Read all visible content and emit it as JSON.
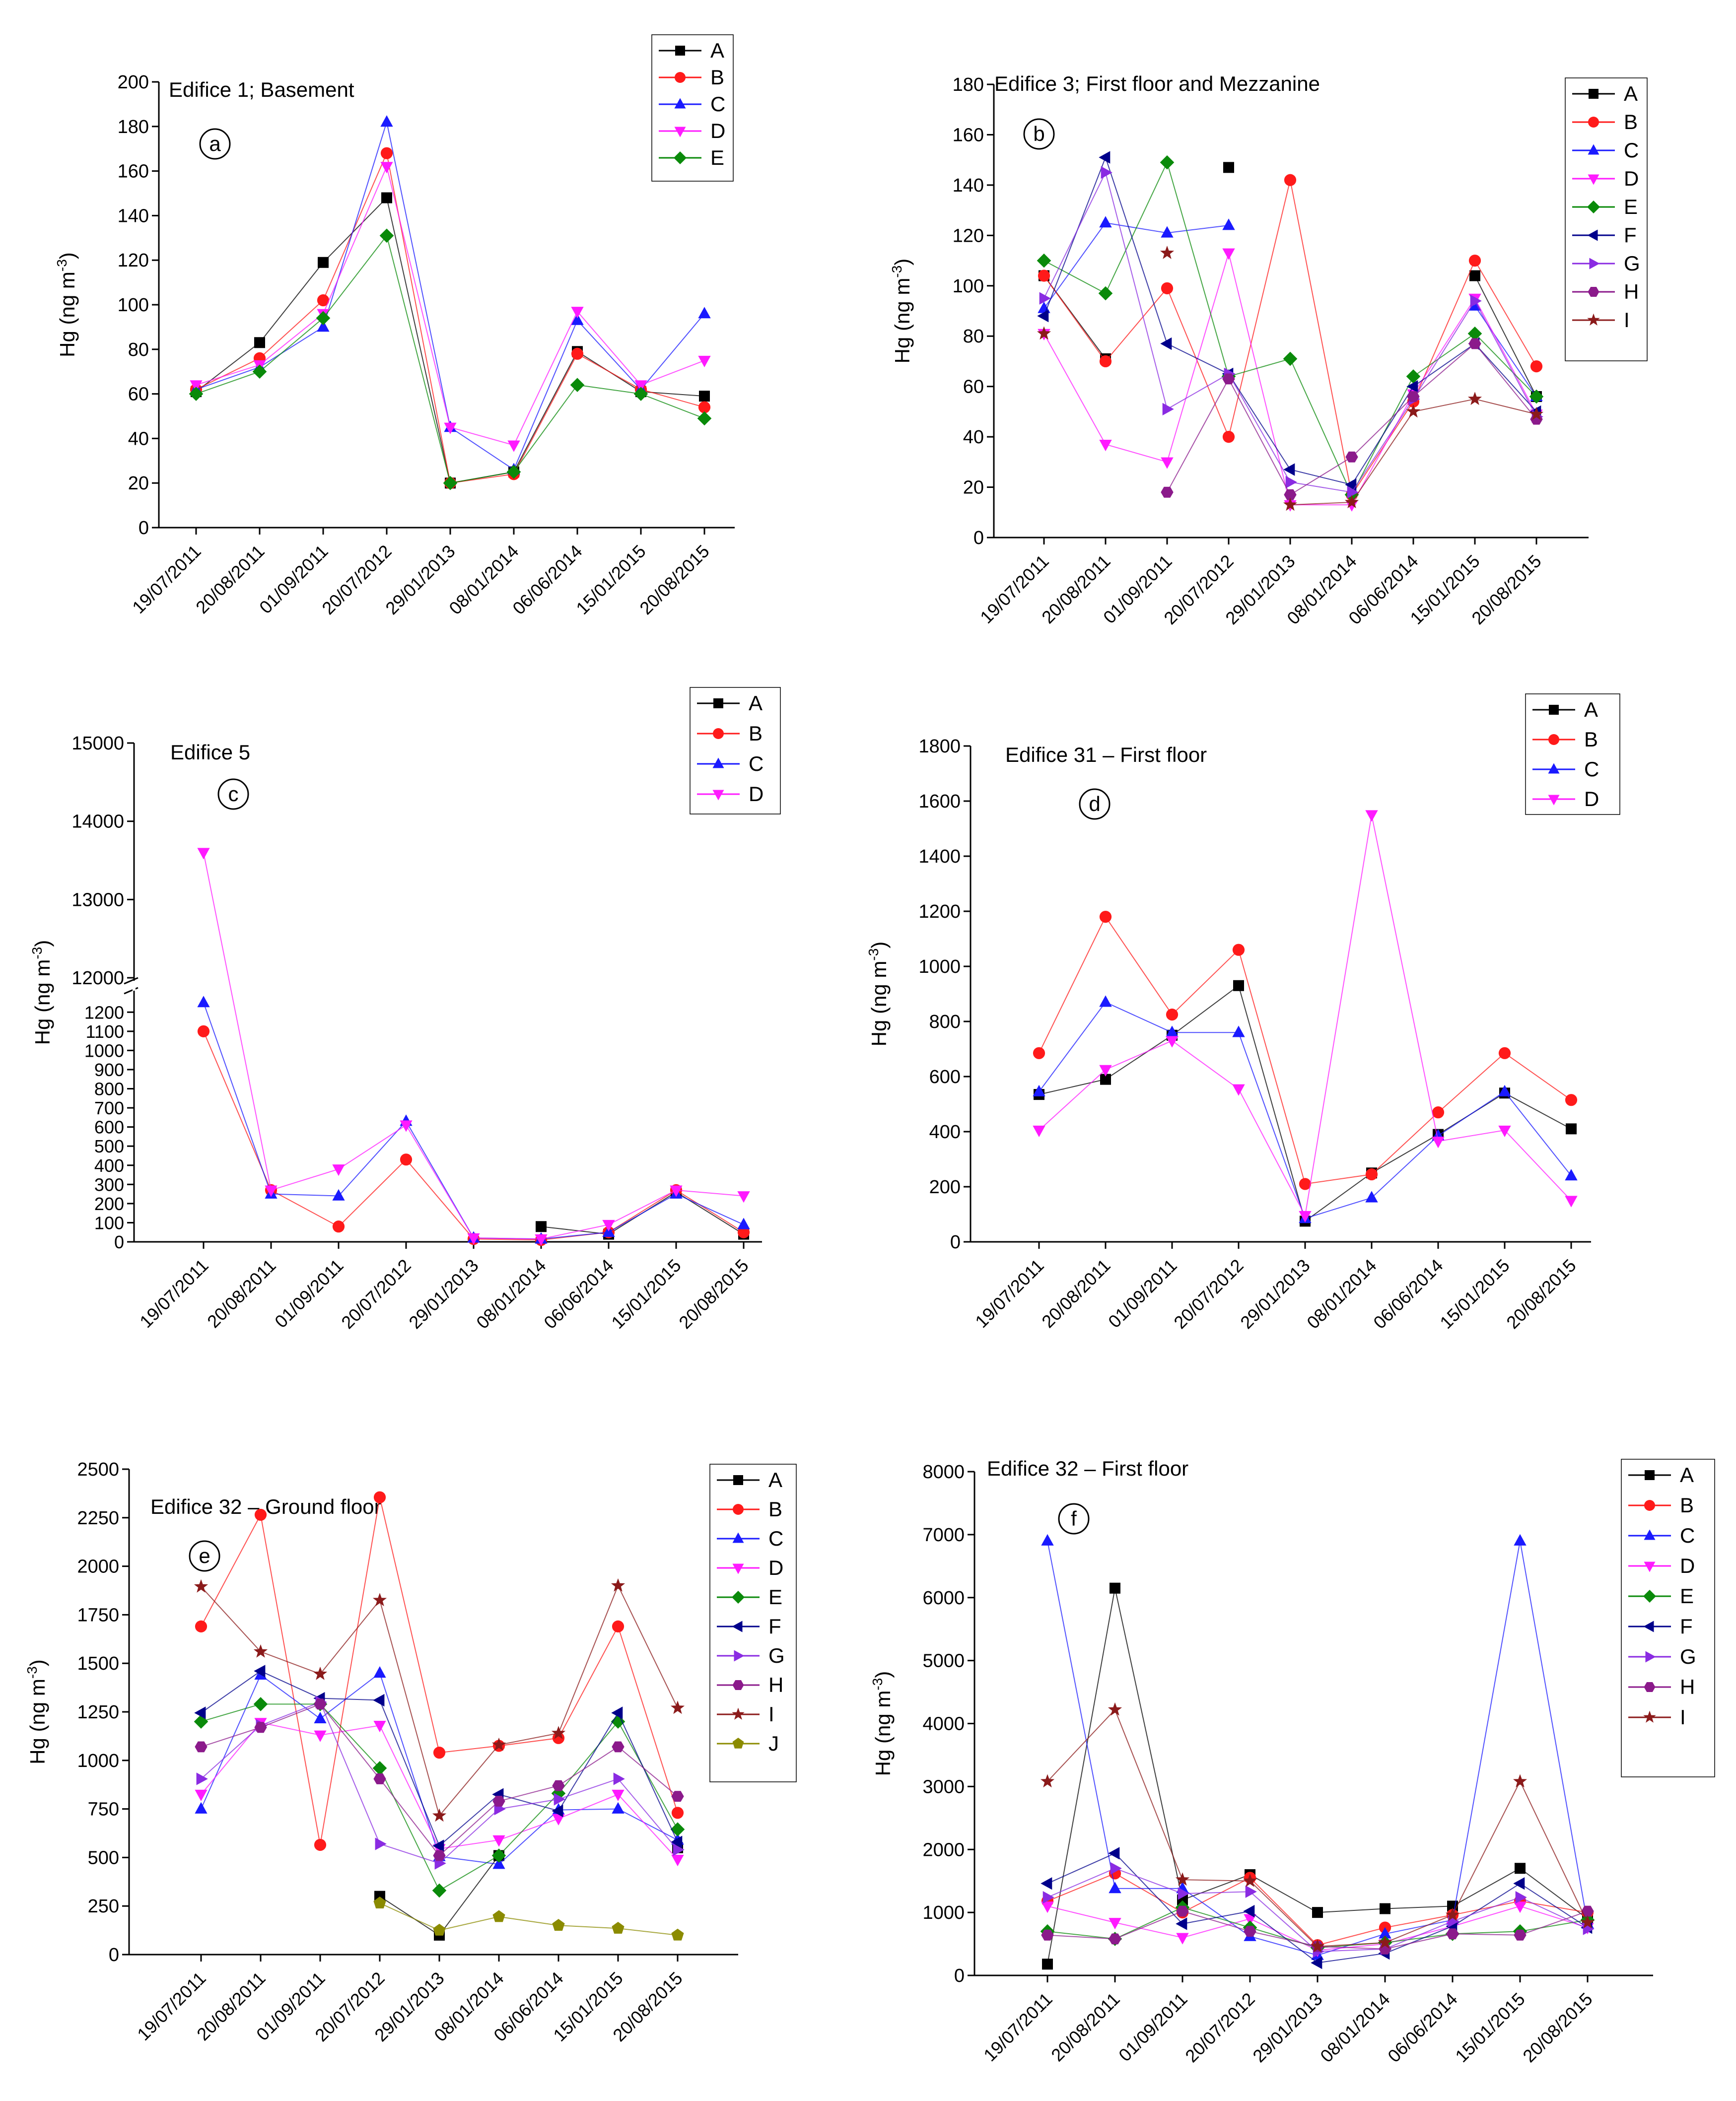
{
  "figure": {
    "dates": [
      "19/07/2011",
      "20/08/2011",
      "01/09/2011",
      "20/07/2012",
      "29/01/2013",
      "08/01/2014",
      "06/06/2014",
      "15/01/2015",
      "20/08/2015"
    ],
    "series_style": {
      "A": {
        "color": "#000000",
        "marker": "square"
      },
      "B": {
        "color": "#ff1a1a",
        "marker": "circle"
      },
      "C": {
        "color": "#1a1aff",
        "marker": "triangle-up"
      },
      "D": {
        "color": "#ff1aff",
        "marker": "triangle-down"
      },
      "E": {
        "color": "#0a8a0a",
        "marker": "diamond"
      },
      "F": {
        "color": "#00008b",
        "marker": "triangle-left"
      },
      "G": {
        "color": "#8a2be2",
        "marker": "triangle-right"
      },
      "H": {
        "color": "#8b1a8b",
        "marker": "hexagon"
      },
      "I": {
        "color": "#8b1a1a",
        "marker": "star"
      },
      "J": {
        "color": "#8b8b00",
        "marker": "pentagon"
      }
    }
  },
  "chart_data": [
    {
      "type": "line",
      "panel_label": "a",
      "title": "Edifice 1; Basement",
      "ylabel": "Hg (ng m-3)",
      "ylabel_main": "Hg (ng m",
      "ylabel_sup": "-3",
      "ylabel_end": ")",
      "ylim": [
        0,
        200
      ],
      "yticks": [
        0,
        20,
        40,
        60,
        80,
        100,
        120,
        140,
        160,
        180,
        200
      ],
      "x": [
        "19/07/2011",
        "20/08/2011",
        "01/09/2011",
        "20/07/2012",
        "29/01/2013",
        "08/01/2014",
        "06/06/2014",
        "15/01/2015",
        "20/08/2015"
      ],
      "legend": [
        "A",
        "B",
        "C",
        "D",
        "E"
      ],
      "series": [
        {
          "name": "A",
          "values": [
            61,
            83,
            119,
            148,
            20,
            25,
            79,
            61,
            59
          ]
        },
        {
          "name": "B",
          "values": [
            62,
            76,
            102,
            168,
            20,
            24,
            78,
            62,
            54
          ]
        },
        {
          "name": "C",
          "values": [
            62,
            72,
            90,
            182,
            45,
            26,
            93,
            62,
            96
          ]
        },
        {
          "name": "D",
          "values": [
            64,
            73,
            96,
            162,
            45,
            37,
            97,
            64,
            75
          ]
        },
        {
          "name": "E",
          "values": [
            60,
            70,
            94,
            131,
            20,
            25,
            64,
            60,
            49
          ]
        }
      ]
    },
    {
      "type": "line",
      "panel_label": "b",
      "title": "Edifice 3; First floor and Mezzanine",
      "ylabel": "Hg (ng m-3)",
      "ylabel_main": "Hg (ng m",
      "ylabel_sup": "-3",
      "ylabel_end": ")",
      "ylim": [
        0,
        180
      ],
      "yticks": [
        0,
        20,
        40,
        60,
        80,
        100,
        120,
        140,
        160,
        180
      ],
      "x": [
        "19/07/2011",
        "20/08/2011",
        "01/09/2011",
        "20/07/2012",
        "29/01/2013",
        "08/01/2014",
        "06/06/2014",
        "15/01/2015",
        "20/08/2015"
      ],
      "legend": [
        "A",
        "B",
        "C",
        "D",
        "E",
        "F",
        "G",
        "H",
        "I"
      ],
      "series": [
        {
          "name": "A",
          "values": [
            104,
            71,
            null,
            147,
            null,
            null,
            null,
            104,
            56
          ]
        },
        {
          "name": "B",
          "values": [
            104,
            70,
            99,
            40,
            142,
            17,
            54,
            110,
            68
          ]
        },
        {
          "name": "C",
          "values": [
            91,
            125,
            121,
            124,
            null,
            null,
            null,
            92,
            56
          ]
        },
        {
          "name": "D",
          "values": [
            81,
            37,
            30,
            113,
            13,
            13,
            57,
            95,
            49
          ]
        },
        {
          "name": "E",
          "values": [
            110,
            97,
            149,
            64,
            71,
            17,
            64,
            81,
            56
          ]
        },
        {
          "name": "F",
          "values": [
            88,
            151,
            77,
            65,
            27,
            21,
            60,
            77,
            50
          ]
        },
        {
          "name": "G",
          "values": [
            95,
            145,
            51,
            65,
            22,
            18,
            55,
            94,
            48
          ]
        },
        {
          "name": "H",
          "values": [
            null,
            null,
            18,
            63,
            17,
            32,
            56,
            77,
            47
          ]
        },
        {
          "name": "I",
          "values": [
            81,
            null,
            113,
            null,
            13,
            14,
            50,
            55,
            49
          ]
        }
      ]
    },
    {
      "type": "line",
      "panel_label": "c",
      "title": "Edifice 5",
      "ylabel": "Hg (ng m-3)",
      "ylabel_main": "Hg (ng m",
      "ylabel_sup": "-3",
      "ylabel_end": ")",
      "axis_break": {
        "lower_ylim": [
          0,
          1250
        ],
        "upper_ylim": [
          12000,
          15000
        ]
      },
      "yticks_lower": [
        0,
        100,
        200,
        300,
        400,
        500,
        600,
        700,
        800,
        900,
        1000,
        1100,
        1200
      ],
      "yticks_upper": [
        12000,
        13000,
        14000,
        15000
      ],
      "x": [
        "19/07/2011",
        "20/08/2011",
        "01/09/2011",
        "20/07/2012",
        "29/01/2013",
        "08/01/2014",
        "06/06/2014",
        "15/01/2015",
        "20/08/2015"
      ],
      "legend": [
        "A",
        "B",
        "C",
        "D"
      ],
      "series": [
        {
          "name": "A",
          "values": [
            null,
            null,
            null,
            null,
            null,
            80,
            40,
            260,
            40
          ]
        },
        {
          "name": "B",
          "values": [
            1100,
            270,
            80,
            430,
            15,
            10,
            50,
            270,
            50
          ]
        },
        {
          "name": "C",
          "values": [
            1250,
            250,
            240,
            630,
            20,
            15,
            50,
            250,
            90
          ]
        },
        {
          "name": "D",
          "values": [
            13600,
            270,
            380,
            610,
            20,
            15,
            90,
            270,
            240
          ]
        }
      ]
    },
    {
      "type": "line",
      "panel_label": "d",
      "title": "Edifice 31 – First floor",
      "ylabel": "Hg (ng m-3)",
      "ylabel_main": "Hg (ng m",
      "ylabel_sup": "-3",
      "ylabel_end": ")",
      "ylim": [
        0,
        1800
      ],
      "yticks": [
        0,
        200,
        400,
        600,
        800,
        1000,
        1200,
        1400,
        1600,
        1800
      ],
      "x": [
        "19/07/2011",
        "20/08/2011",
        "01/09/2011",
        "20/07/2012",
        "29/01/2013",
        "08/01/2014",
        "06/06/2014",
        "15/01/2015",
        "20/08/2015"
      ],
      "legend": [
        "A",
        "B",
        "C",
        "D"
      ],
      "series": [
        {
          "name": "A",
          "values": [
            535,
            590,
            750,
            930,
            75,
            250,
            390,
            540,
            410
          ]
        },
        {
          "name": "B",
          "values": [
            685,
            1180,
            825,
            1060,
            210,
            245,
            470,
            685,
            515
          ]
        },
        {
          "name": "C",
          "values": [
            545,
            870,
            760,
            760,
            85,
            160,
            385,
            545,
            240
          ]
        },
        {
          "name": "D",
          "values": [
            405,
            625,
            730,
            555,
            95,
            1550,
            365,
            405,
            150
          ]
        }
      ]
    },
    {
      "type": "line",
      "panel_label": "e",
      "title": "Edifice 32 – Ground floor",
      "ylabel": "Hg (ng m-3)",
      "ylabel_main": "Hg (ng m",
      "ylabel_sup": "-3",
      "ylabel_end": ")",
      "ylim": [
        0,
        2500
      ],
      "yticks": [
        0,
        250,
        500,
        750,
        1000,
        1250,
        1500,
        1750,
        2000,
        2250,
        2500
      ],
      "x": [
        "19/07/2011",
        "20/08/2011",
        "01/09/2011",
        "20/07/2012",
        "29/01/2013",
        "08/01/2014",
        "06/06/2014",
        "15/01/2015",
        "20/08/2015"
      ],
      "legend": [
        "A",
        "B",
        "C",
        "D",
        "E",
        "F",
        "G",
        "H",
        "I",
        "J"
      ],
      "series": [
        {
          "name": "A",
          "values": [
            null,
            null,
            null,
            300,
            100,
            510,
            null,
            null,
            550
          ]
        },
        {
          "name": "B",
          "values": [
            1690,
            2265,
            565,
            2355,
            1040,
            1075,
            1115,
            1690,
            730
          ]
        },
        {
          "name": "C",
          "values": [
            750,
            1440,
            1215,
            1450,
            505,
            465,
            745,
            750,
            590
          ]
        },
        {
          "name": "D",
          "values": [
            825,
            1195,
            1130,
            1180,
            545,
            590,
            700,
            825,
            490
          ]
        },
        {
          "name": "E",
          "values": [
            1200,
            1290,
            1290,
            960,
            330,
            510,
            830,
            1200,
            645
          ]
        },
        {
          "name": "F",
          "values": [
            1245,
            1460,
            1320,
            1310,
            560,
            825,
            740,
            1245,
            580
          ]
        },
        {
          "name": "G",
          "values": [
            905,
            1180,
            1300,
            570,
            470,
            750,
            800,
            905,
            540
          ]
        },
        {
          "name": "H",
          "values": [
            1070,
            1170,
            1290,
            905,
            510,
            790,
            870,
            1070,
            815
          ]
        },
        {
          "name": "I",
          "values": [
            1895,
            1560,
            1445,
            1825,
            715,
            1080,
            1140,
            1900,
            1270
          ]
        },
        {
          "name": "J",
          "values": [
            null,
            null,
            null,
            265,
            125,
            195,
            150,
            135,
            100
          ]
        }
      ]
    },
    {
      "type": "line",
      "panel_label": "f",
      "title": "Edifice 32 – First floor",
      "ylabel": "Hg (ng m-3)",
      "ylabel_main": "Hg (ng m",
      "ylabel_sup": "-3",
      "ylabel_end": ")",
      "ylim": [
        0,
        8000
      ],
      "yticks": [
        0,
        1000,
        2000,
        3000,
        4000,
        5000,
        6000,
        7000,
        8000
      ],
      "x": [
        "19/07/2011",
        "20/08/2011",
        "01/09/2011",
        "20/07/2012",
        "29/01/2013",
        "08/01/2014",
        "06/06/2014",
        "15/01/2015",
        "20/08/2015"
      ],
      "legend": [
        "A",
        "B",
        "C",
        "D",
        "E",
        "F",
        "G",
        "H",
        "I"
      ],
      "series": [
        {
          "name": "A",
          "values": [
            180,
            6150,
            1200,
            1600,
            1000,
            1060,
            1100,
            1700,
            900
          ]
        },
        {
          "name": "B",
          "values": [
            1180,
            1620,
            1000,
            1550,
            480,
            760,
            960,
            1180,
            1000
          ]
        },
        {
          "name": "C",
          "values": [
            6900,
            1380,
            1380,
            620,
            320,
            660,
            880,
            6900,
            820
          ]
        },
        {
          "name": "D",
          "values": [
            1100,
            840,
            600,
            900,
            400,
            500,
            780,
            1100,
            760
          ]
        },
        {
          "name": "E",
          "values": [
            700,
            580,
            1080,
            760,
            440,
            520,
            660,
            700,
            880
          ]
        },
        {
          "name": "F",
          "values": [
            1460,
            1940,
            820,
            1020,
            200,
            350,
            780,
            1460,
            760
          ]
        },
        {
          "name": "G",
          "values": [
            1240,
            1700,
            1300,
            1330,
            380,
            420,
            860,
            1240,
            740
          ]
        },
        {
          "name": "H",
          "values": [
            640,
            580,
            1020,
            700,
            460,
            420,
            660,
            640,
            1020
          ]
        },
        {
          "name": "I",
          "values": [
            3080,
            4220,
            1520,
            1500,
            460,
            520,
            960,
            3080,
            840
          ]
        }
      ]
    }
  ]
}
